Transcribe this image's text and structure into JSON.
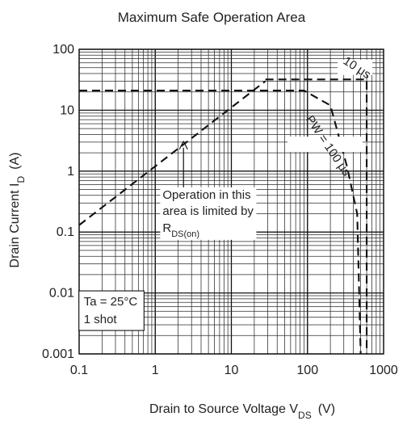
{
  "chart_data": {
    "type": "line",
    "title": "Maximum Safe Operation Area",
    "xlabel": {
      "main": "Drain to Source Voltage   V",
      "sub": "DS",
      "unit": "(V)"
    },
    "ylabel": {
      "main": "Drain Current   I",
      "sub": "D",
      "unit": "(A)"
    },
    "x_scale": "log",
    "y_scale": "log",
    "xlim": [
      0.1,
      1000
    ],
    "ylim": [
      0.001,
      100
    ],
    "x_ticks": [
      {
        "value": 0.1,
        "label": "0.1"
      },
      {
        "value": 1,
        "label": "1"
      },
      {
        "value": 10,
        "label": "10"
      },
      {
        "value": 100,
        "label": "100"
      },
      {
        "value": 1000,
        "label": "1000"
      }
    ],
    "y_ticks": [
      {
        "value": 0.001,
        "label": "0.001"
      },
      {
        "value": 0.01,
        "label": "0.01"
      },
      {
        "value": 0.1,
        "label": "0.1"
      },
      {
        "value": 1,
        "label": "1"
      },
      {
        "value": 10,
        "label": "10"
      },
      {
        "value": 100,
        "label": "100"
      }
    ],
    "grid": true,
    "series": [
      {
        "key": "rds_on_limit",
        "points": [
          [
            0.1,
            0.13
          ],
          [
            28,
            30
          ]
        ],
        "style": "dashed"
      },
      {
        "key": "pulse_10us",
        "points": [
          [
            28,
            32
          ],
          [
            600,
            32
          ],
          [
            600,
            0.001
          ]
        ],
        "style": "dashed"
      },
      {
        "key": "pulse_100us",
        "points": [
          [
            0.1,
            21
          ],
          [
            90,
            21
          ],
          [
            200,
            12
          ],
          [
            330,
            1.2
          ],
          [
            450,
            0.2
          ],
          [
            500,
            0.001
          ]
        ],
        "style": "dashed"
      }
    ],
    "annotations": [
      {
        "key": "label_10us",
        "text": "10 μs",
        "x": 420,
        "y": 44,
        "rotate": 33
      },
      {
        "key": "label_100us",
        "text": "PW = 100 μs",
        "x": 170,
        "y": 2.4,
        "rotate": 56
      },
      {
        "key": "rds_note",
        "line1": "Operation in this",
        "line2": "area is limited by",
        "line3_main": "R",
        "line3_sub": "DS(on)",
        "x": 1.25,
        "y": 0.17
      },
      {
        "key": "conditions",
        "line1": "Ta = 25°C",
        "line2": "1 shot",
        "x": 0.115,
        "y": 0.0052
      }
    ],
    "arrow": {
      "from": [
        2.35,
        0.26
      ],
      "to": [
        2.35,
        3.1
      ]
    }
  }
}
